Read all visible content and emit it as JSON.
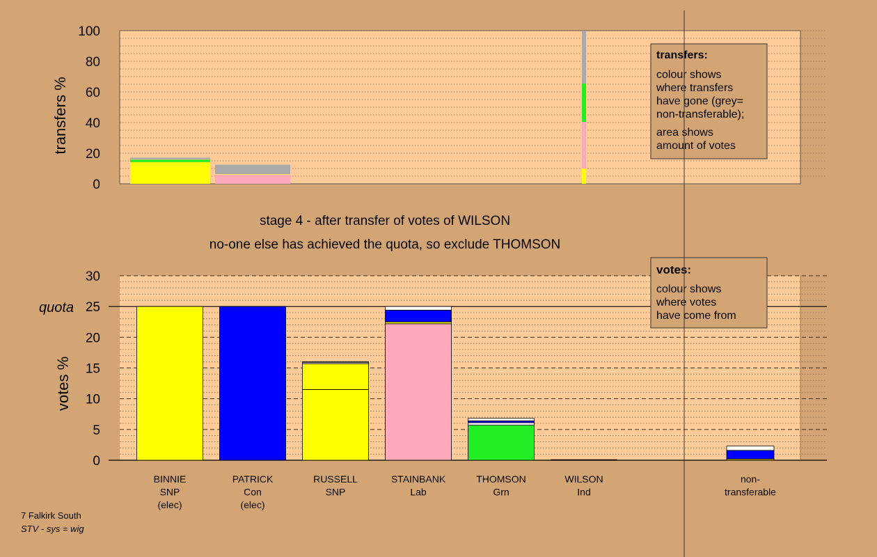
{
  "colors": {
    "page_bg": "#d4a574",
    "plot_bg": "#ffcc99",
    "SNP": "#ffff00",
    "Con": "#0000ff",
    "Lab": "#ffaabb",
    "Grn": "#22ee22",
    "Ind": "#ffffff",
    "non_transferable": "#aaaaaa"
  },
  "headings": {
    "line1": "stage 4 - after transfer of votes of WILSON",
    "line2": "no-one else has achieved the quota, so exclude THOMSON"
  },
  "footer": {
    "constituency": "7 Falkirk South",
    "system": "STV - sys = wig"
  },
  "legend_transfers": {
    "title": "transfers:",
    "lines1": [
      "colour shows",
      "where transfers",
      "have gone (grey=",
      "non-transferable);"
    ],
    "lines2": [
      "area shows",
      "amount of votes"
    ]
  },
  "legend_votes": {
    "title": "votes:",
    "lines": [
      "colour shows",
      "where votes",
      "have come from"
    ]
  },
  "chart_data": [
    {
      "type": "bar",
      "stacked": true,
      "ylabel": "transfers %",
      "ylim": [
        0,
        100
      ],
      "yticks": [
        0,
        20,
        40,
        60,
        80,
        100
      ],
      "grid": "dotted",
      "categories": [
        "BINNIE",
        "PATRICK",
        "RUSSELL",
        "STAINBANK",
        "THOMSON",
        "WILSON",
        "non-transferable"
      ],
      "note": "stack segments are ordered bottom-to-top; values are % of votes",
      "series": [
        {
          "category": "BINNIE",
          "segments": [
            {
              "color": "SNP",
              "value": 14.2
            },
            {
              "color": "Grn",
              "value": 1.6
            },
            {
              "color": "Lab",
              "value": 0.3
            },
            {
              "color": "non_transferable",
              "value": 1.0
            }
          ]
        },
        {
          "category": "PATRICK",
          "segments": [
            {
              "color": "Lab",
              "value": 6.0
            },
            {
              "color": "SNP",
              "value": 0.3
            },
            {
              "color": "non_transferable",
              "value": 6.2
            }
          ]
        },
        {
          "category": "WILSON",
          "segments": [
            {
              "color": "SNP",
              "value": 10.0
            },
            {
              "color": "Lab",
              "value": 30.5
            },
            {
              "color": "Grn",
              "value": 25.0
            },
            {
              "color": "non_transferable",
              "value": 34.5
            }
          ]
        }
      ]
    },
    {
      "type": "bar",
      "stacked": true,
      "ylabel": "votes %",
      "ylim": [
        0,
        30
      ],
      "yticks": [
        0,
        5,
        10,
        15,
        20,
        25,
        30
      ],
      "quota": 25,
      "quota_label": "quota",
      "grid": "dashed",
      "categories": [
        {
          "name": "BINNIE",
          "party": "SNP",
          "note": "(elec)"
        },
        {
          "name": "PATRICK",
          "party": "Con",
          "note": "(elec)"
        },
        {
          "name": "RUSSELL",
          "party": "SNP",
          "note": ""
        },
        {
          "name": "STAINBANK",
          "party": "Lab",
          "note": ""
        },
        {
          "name": "THOMSON",
          "party": "Grn",
          "note": ""
        },
        {
          "name": "WILSON",
          "party": "Ind",
          "note": ""
        },
        {
          "name": "non-",
          "party": "transferable",
          "note": ""
        }
      ],
      "series": [
        {
          "category": "BINNIE",
          "segments": [
            {
              "color": "SNP",
              "value": 25.0
            }
          ]
        },
        {
          "category": "PATRICK",
          "segments": [
            {
              "color": "Con",
              "value": 25.0
            }
          ]
        },
        {
          "category": "RUSSELL",
          "segments": [
            {
              "color": "SNP",
              "value": 11.5
            },
            {
              "color": "SNP",
              "value": 4.2
            },
            {
              "color": "Ind",
              "value": 0.2
            },
            {
              "color": "Lab",
              "value": 0.1
            }
          ]
        },
        {
          "category": "STAINBANK",
          "segments": [
            {
              "color": "Lab",
              "value": 22.2
            },
            {
              "color": "SNP",
              "value": 0.3
            },
            {
              "color": "Con",
              "value": 1.9
            },
            {
              "color": "Ind",
              "value": 0.6
            }
          ]
        },
        {
          "category": "THOMSON",
          "segments": [
            {
              "color": "Grn",
              "value": 5.7
            },
            {
              "color": "Ind",
              "value": 0.4
            },
            {
              "color": "Con",
              "value": 0.3
            },
            {
              "color": "Ind",
              "value": 0.4
            }
          ]
        },
        {
          "category": "WILSON",
          "segments": [
            {
              "color": "Ind",
              "value": 0.0
            }
          ]
        },
        {
          "category": "non-transferable",
          "segments": [
            {
              "color": "SNP",
              "value": 0.2
            },
            {
              "color": "Con",
              "value": 1.4
            },
            {
              "color": "Ind",
              "value": 0.7
            }
          ]
        }
      ]
    }
  ]
}
